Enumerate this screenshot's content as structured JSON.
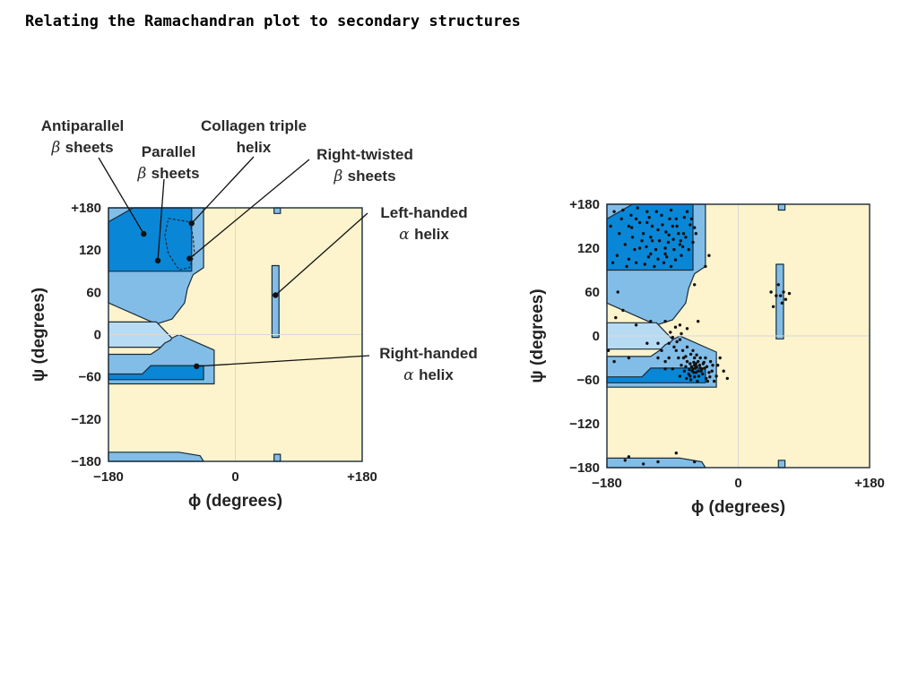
{
  "slide": {
    "title": "Relating the Ramachandran plot to secondary structures"
  },
  "colors": {
    "background_region": "#fdf3cc",
    "allowed_region": "#82bde8",
    "bridge_region": "#b7dbf3",
    "core_region": "#0a86d6",
    "outline": "#1b2b38",
    "grid": "#d9d9d9",
    "points": "#111111"
  },
  "chart_data": [
    {
      "type": "scatter",
      "xlabel": "ϕ (degrees)",
      "ylabel": "ψ (degrees)",
      "xlim": [
        -180,
        180
      ],
      "ylim": [
        -180,
        180
      ],
      "x_ticks": [
        {
          "value": -180,
          "label": "−180"
        },
        {
          "value": 0,
          "label": "0"
        },
        {
          "value": 180,
          "label": "+180"
        }
      ],
      "y_ticks": [
        {
          "value": 180,
          "label": "+180"
        },
        {
          "value": 120,
          "label": "120"
        },
        {
          "value": 60,
          "label": "60"
        },
        {
          "value": 0,
          "label": "0"
        },
        {
          "value": -60,
          "label": "−60"
        },
        {
          "value": -120,
          "label": "−120"
        },
        {
          "value": -180,
          "label": "−180"
        }
      ],
      "grid": "zero lines",
      "annotations": [
        {
          "lines": [
            "Antiparallel",
            "β sheets"
          ],
          "target": [
            -130,
            143
          ]
        },
        {
          "lines": [
            "Parallel",
            "β sheets"
          ],
          "target": [
            -110,
            105
          ]
        },
        {
          "lines": [
            "Collagen triple",
            "helix"
          ],
          "target": [
            -62,
            158
          ]
        },
        {
          "lines": [
            "Right-twisted",
            "β sheets"
          ],
          "target": [
            -65,
            108
          ]
        },
        {
          "lines": [
            "Left-handed",
            "α helix"
          ],
          "target": [
            57,
            56
          ]
        },
        {
          "lines": [
            "Right-handed",
            "α helix"
          ],
          "target": [
            -55,
            -45
          ]
        }
      ],
      "points": []
    },
    {
      "type": "scatter",
      "xlabel": "ϕ (degrees)",
      "ylabel": "ψ (degrees)",
      "xlim": [
        -180,
        180
      ],
      "ylim": [
        -180,
        180
      ],
      "x_ticks": [
        {
          "value": -180,
          "label": "−180"
        },
        {
          "value": 0,
          "label": "0"
        },
        {
          "value": 180,
          "label": "+180"
        }
      ],
      "y_ticks": [
        {
          "value": 180,
          "label": "+180"
        },
        {
          "value": 120,
          "label": "120"
        },
        {
          "value": 60,
          "label": "60"
        },
        {
          "value": 0,
          "label": "0"
        },
        {
          "value": -60,
          "label": "−60"
        },
        {
          "value": -120,
          "label": "−120"
        },
        {
          "value": -180,
          "label": "−180"
        }
      ],
      "grid": "zero lines",
      "annotations": [],
      "points": [
        [
          -150,
          150
        ],
        [
          -140,
          160
        ],
        [
          -130,
          140
        ],
        [
          -125,
          155
        ],
        [
          -118,
          130
        ],
        [
          -110,
          145
        ],
        [
          -105,
          165
        ],
        [
          -100,
          120
        ],
        [
          -95,
          138
        ],
        [
          -90,
          150
        ],
        [
          -85,
          160
        ],
        [
          -80,
          125
        ],
        [
          -75,
          140
        ],
        [
          -70,
          170
        ],
        [
          -135,
          120
        ],
        [
          -145,
          135
        ],
        [
          -120,
          112
        ],
        [
          -112,
          170
        ],
        [
          -98,
          108
        ],
        [
          -88,
          118
        ],
        [
          -78,
          110
        ],
        [
          -72,
          135
        ],
        [
          -66,
          152
        ],
        [
          -60,
          148
        ],
        [
          -155,
          125
        ],
        [
          -160,
          160
        ],
        [
          -150,
          105
        ],
        [
          -140,
          100
        ],
        [
          -128,
          98
        ],
        [
          -115,
          95
        ],
        [
          -102,
          100
        ],
        [
          -125,
          170
        ],
        [
          -138,
          175
        ],
        [
          -92,
          172
        ],
        [
          -82,
          140
        ],
        [
          -108,
          130
        ],
        [
          -118,
          150
        ],
        [
          -132,
          130
        ],
        [
          -142,
          118
        ],
        [
          -96,
          128
        ],
        [
          -86,
          104
        ],
        [
          -76,
          122
        ],
        [
          -68,
          118
        ],
        [
          -62,
          128
        ],
        [
          -58,
          140
        ],
        [
          -163,
          140
        ],
        [
          -166,
          110
        ],
        [
          -158,
          172
        ],
        [
          -146,
          148
        ],
        [
          -122,
          162
        ],
        [
          -104,
          152
        ],
        [
          -94,
          160
        ],
        [
          -84,
          150
        ],
        [
          -74,
          162
        ],
        [
          -64,
          160
        ],
        [
          -126,
          122
        ],
        [
          -113,
          118
        ],
        [
          -99,
          142
        ],
        [
          -89,
          132
        ],
        [
          -79,
          130
        ],
        [
          -110,
          105
        ],
        [
          -120,
          135
        ],
        [
          -135,
          155
        ],
        [
          -147,
          165
        ],
        [
          -153,
          95
        ],
        [
          -123,
          108
        ],
        [
          -100,
          112
        ],
        [
          -92,
          95
        ],
        [
          -175,
          150
        ],
        [
          -172,
          100
        ],
        [
          -170,
          170
        ],
        [
          -165,
          60
        ],
        [
          -168,
          25
        ],
        [
          -158,
          35
        ],
        [
          -140,
          15
        ],
        [
          -120,
          20
        ],
        [
          -100,
          20
        ],
        [
          -80,
          15
        ],
        [
          -70,
          10
        ],
        [
          -60,
          70
        ],
        [
          -55,
          20
        ],
        [
          -45,
          95
        ],
        [
          -40,
          110
        ],
        [
          -178,
          -20
        ],
        [
          -170,
          -35
        ],
        [
          -150,
          -30
        ],
        [
          -125,
          -10
        ],
        [
          -110,
          -30
        ],
        [
          -100,
          -45
        ],
        [
          -95,
          -10
        ],
        [
          -85,
          -20
        ],
        [
          -80,
          -5
        ],
        [
          -75,
          -30
        ],
        [
          -70,
          -15
        ],
        [
          -65,
          -25
        ],
        [
          -60,
          -40
        ],
        [
          -55,
          -35
        ],
        [
          -50,
          -45
        ],
        [
          -45,
          -30
        ],
        [
          -40,
          -50
        ],
        [
          -35,
          -40
        ],
        [
          -30,
          -55
        ],
        [
          -62,
          -45
        ],
        [
          -58,
          -50
        ],
        [
          -66,
          -38
        ],
        [
          -72,
          -42
        ],
        [
          -54,
          -55
        ],
        [
          -48,
          -38
        ],
        [
          -52,
          -30
        ],
        [
          -44,
          -58
        ],
        [
          -68,
          -52
        ],
        [
          -74,
          -48
        ],
        [
          -60,
          -30
        ],
        [
          -57,
          -42
        ],
        [
          -63,
          -48
        ],
        [
          -51,
          -48
        ],
        [
          -46,
          -44
        ],
        [
          -70,
          -35
        ],
        [
          -78,
          -40
        ],
        [
          -82,
          -30
        ],
        [
          -88,
          -15
        ],
        [
          -65,
          -60
        ],
        [
          -56,
          -62
        ],
        [
          -42,
          -62
        ],
        [
          -38,
          -35
        ],
        [
          -36,
          -48
        ],
        [
          -28,
          -40
        ],
        [
          -20,
          -48
        ],
        [
          -15,
          -58
        ],
        [
          -25,
          -30
        ],
        [
          -61,
          -36
        ],
        [
          -59,
          -44
        ],
        [
          -53,
          -40
        ],
        [
          -64,
          -42
        ],
        [
          -67,
          -46
        ],
        [
          -55,
          -48
        ],
        [
          -49,
          -52
        ],
        [
          -47,
          -36
        ],
        [
          -72,
          -28
        ],
        [
          -76,
          -20
        ],
        [
          -84,
          -8
        ],
        [
          -90,
          -2
        ],
        [
          -93,
          5
        ],
        [
          -86,
          12
        ],
        [
          -78,
          3
        ],
        [
          -62,
          -20
        ],
        [
          -57,
          -26
        ],
        [
          -43,
          -42
        ],
        [
          -39,
          -56
        ],
        [
          -33,
          -62
        ],
        [
          -60,
          -56
        ],
        [
          -66,
          -55
        ],
        [
          -71,
          -58
        ],
        [
          -80,
          -55
        ],
        [
          -90,
          -45
        ],
        [
          -100,
          -35
        ],
        [
          -105,
          -20
        ],
        [
          -110,
          -10
        ],
        [
          -95,
          -30
        ],
        [
          -58,
          -38
        ],
        [
          -52,
          -44
        ],
        [
          -61,
          -50
        ],
        [
          45,
          60
        ],
        [
          52,
          55
        ],
        [
          60,
          45
        ],
        [
          55,
          70
        ],
        [
          62,
          60
        ],
        [
          58,
          55
        ],
        [
          70,
          58
        ],
        [
          65,
          50
        ],
        [
          48,
          40
        ],
        [
          -155,
          -170
        ],
        [
          -130,
          -175
        ],
        [
          -110,
          -172
        ],
        [
          -150,
          -165
        ],
        [
          -85,
          -160
        ],
        [
          -60,
          -172
        ]
      ]
    }
  ]
}
